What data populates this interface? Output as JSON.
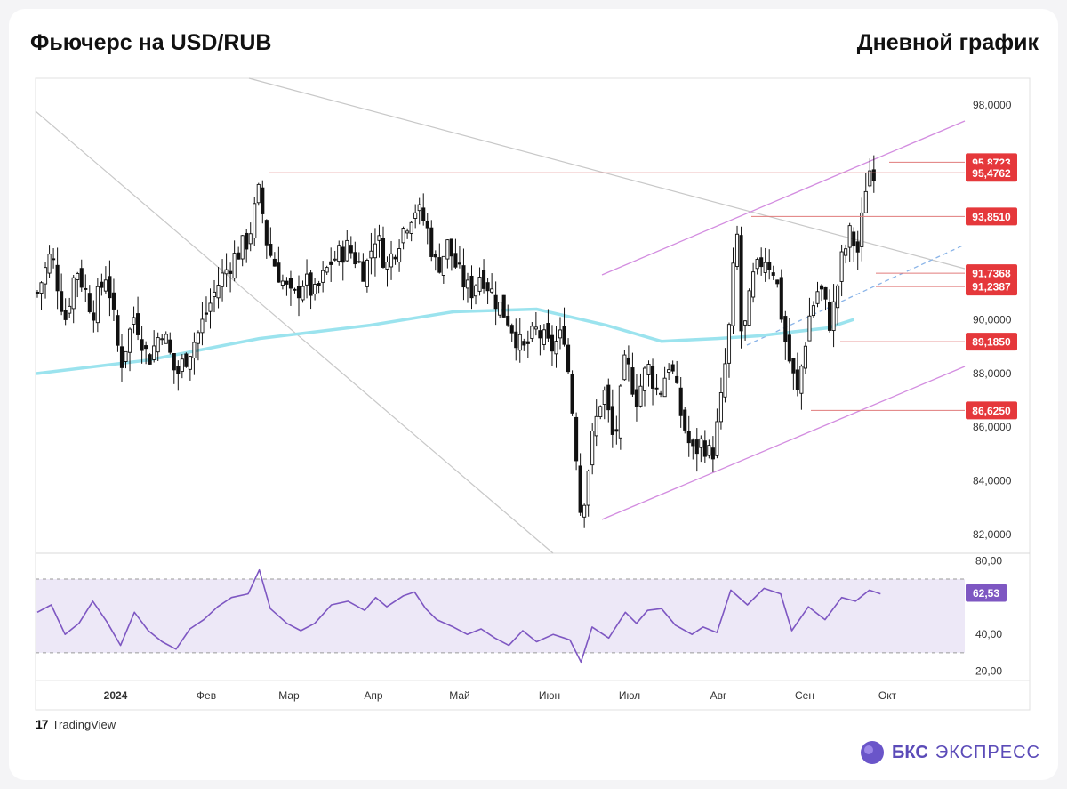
{
  "header": {
    "title": "Фьючерс на USD/RUB",
    "timeframe": "Дневной график"
  },
  "branding": {
    "tradingview": "TradingView",
    "bcs_bold": "БКС",
    "bcs_light": "ЭКСПРЕСС"
  },
  "colors": {
    "candle": "#111111",
    "ma": "#9be3ee",
    "channel": "#d38de0",
    "level_line": "#e07b7b",
    "level_label_bg": "#e5383b",
    "trend_gray": "#c8c8c8",
    "dashed_trend": "#8ab4e8",
    "rsi_line": "#7e57c2",
    "rsi_band": "#ede8f7"
  },
  "chart_data": [
    {
      "type": "candlestick",
      "title": "",
      "xlabel": "",
      "ylabel": "",
      "x_ticks": [
        "2024",
        "Фев",
        "Мар",
        "Апр",
        "Май",
        "Июн",
        "Июл",
        "Авг",
        "Сен",
        "Окт"
      ],
      "y_ticks": [
        "98,0000",
        "90,0000",
        "88,0000",
        "86,0000",
        "84,0000",
        "82,0000"
      ],
      "ylim": [
        81.3,
        99.0
      ],
      "x_range_days": [
        0,
        296
      ],
      "moving_average_approx": [
        [
          0,
          88.0
        ],
        [
          40,
          88.5
        ],
        [
          80,
          89.3
        ],
        [
          120,
          89.8
        ],
        [
          150,
          90.3
        ],
        [
          180,
          90.4
        ],
        [
          205,
          89.8
        ],
        [
          225,
          89.2
        ],
        [
          245,
          89.3
        ],
        [
          260,
          89.4
        ],
        [
          285,
          89.7
        ],
        [
          294,
          90.0
        ]
      ],
      "close_path_approx": [
        [
          0,
          91.0
        ],
        [
          5,
          92.5
        ],
        [
          10,
          90.0
        ],
        [
          14,
          92.0
        ],
        [
          20,
          90.3
        ],
        [
          25,
          91.8
        ],
        [
          30,
          88.3
        ],
        [
          35,
          90.2
        ],
        [
          40,
          88.5
        ],
        [
          45,
          89.7
        ],
        [
          50,
          87.9
        ],
        [
          58,
          89.5
        ],
        [
          65,
          91.3
        ],
        [
          70,
          92.2
        ],
        [
          76,
          93.0
        ],
        [
          80,
          94.8
        ],
        [
          83,
          92.7
        ],
        [
          88,
          91.5
        ],
        [
          92,
          90.7
        ],
        [
          96,
          91.5
        ],
        [
          100,
          90.9
        ],
        [
          106,
          92.2
        ],
        [
          112,
          92.7
        ],
        [
          118,
          91.8
        ],
        [
          122,
          93.2
        ],
        [
          126,
          92.0
        ],
        [
          132,
          93.4
        ],
        [
          136,
          94.2
        ],
        [
          140,
          93.6
        ],
        [
          144,
          91.9
        ],
        [
          148,
          92.8
        ],
        [
          152,
          91.7
        ],
        [
          156,
          91.0
        ],
        [
          160,
          91.8
        ],
        [
          165,
          90.8
        ],
        [
          170,
          90.0
        ],
        [
          175,
          88.8
        ],
        [
          180,
          89.6
        ],
        [
          185,
          88.9
        ],
        [
          190,
          89.5
        ],
        [
          194,
          85.5
        ],
        [
          196,
          82.6
        ],
        [
          200,
          85.5
        ],
        [
          204,
          87.5
        ],
        [
          208,
          85.3
        ],
        [
          212,
          88.5
        ],
        [
          216,
          87.1
        ],
        [
          220,
          88.3
        ],
        [
          224,
          87.2
        ],
        [
          228,
          88.5
        ],
        [
          232,
          86.5
        ],
        [
          236,
          85.0
        ],
        [
          240,
          85.5
        ],
        [
          243,
          84.8
        ],
        [
          246,
          86.5
        ],
        [
          250,
          90.2
        ],
        [
          252,
          93.8
        ],
        [
          254,
          89.0
        ],
        [
          258,
          91.5
        ],
        [
          262,
          92.4
        ],
        [
          266,
          91.8
        ],
        [
          270,
          89.0
        ],
        [
          274,
          87.2
        ],
        [
          278,
          90.0
        ],
        [
          282,
          91.3
        ],
        [
          286,
          89.8
        ],
        [
          290,
          92.2
        ],
        [
          293,
          93.2
        ],
        [
          296,
          92.5
        ],
        [
          299,
          95.3
        ],
        [
          301,
          95.8
        ],
        [
          303,
          95.2
        ]
      ],
      "levels": [
        "95,8723",
        "95,4762",
        "93,8510",
        "91,7368",
        "91,2387",
        "89,1850",
        "86,6250"
      ]
    },
    {
      "type": "line",
      "title": "",
      "y_ticks": [
        "80,00",
        "40,00",
        "20,00"
      ],
      "ylim": [
        15,
        84
      ],
      "band": [
        30,
        70
      ],
      "midline": 50,
      "last_value": "62,53",
      "rsi_path_approx": [
        [
          0,
          52
        ],
        [
          5,
          56
        ],
        [
          10,
          40
        ],
        [
          15,
          46
        ],
        [
          20,
          58
        ],
        [
          25,
          47
        ],
        [
          30,
          34
        ],
        [
          35,
          52
        ],
        [
          40,
          42
        ],
        [
          45,
          36
        ],
        [
          50,
          32
        ],
        [
          55,
          43
        ],
        [
          60,
          48
        ],
        [
          65,
          55
        ],
        [
          70,
          60
        ],
        [
          76,
          62
        ],
        [
          80,
          75
        ],
        [
          84,
          54
        ],
        [
          90,
          46
        ],
        [
          95,
          42
        ],
        [
          100,
          46
        ],
        [
          106,
          56
        ],
        [
          112,
          58
        ],
        [
          118,
          53
        ],
        [
          122,
          60
        ],
        [
          126,
          55
        ],
        [
          132,
          61
        ],
        [
          136,
          63
        ],
        [
          140,
          54
        ],
        [
          144,
          48
        ],
        [
          150,
          44
        ],
        [
          155,
          40
        ],
        [
          160,
          43
        ],
        [
          165,
          38
        ],
        [
          170,
          34
        ],
        [
          175,
          42
        ],
        [
          180,
          36
        ],
        [
          186,
          40
        ],
        [
          192,
          37
        ],
        [
          196,
          25
        ],
        [
          200,
          44
        ],
        [
          206,
          38
        ],
        [
          212,
          52
        ],
        [
          216,
          46
        ],
        [
          220,
          53
        ],
        [
          225,
          54
        ],
        [
          230,
          45
        ],
        [
          236,
          40
        ],
        [
          240,
          44
        ],
        [
          245,
          41
        ],
        [
          250,
          64
        ],
        [
          256,
          56
        ],
        [
          262,
          65
        ],
        [
          268,
          62
        ],
        [
          272,
          42
        ],
        [
          278,
          55
        ],
        [
          284,
          48
        ],
        [
          290,
          60
        ],
        [
          295,
          58
        ],
        [
          300,
          64
        ],
        [
          304,
          62
        ]
      ]
    }
  ]
}
